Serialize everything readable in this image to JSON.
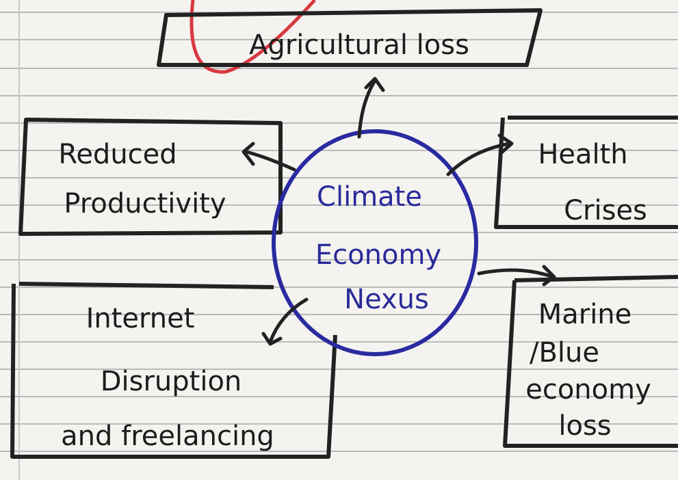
{
  "nodes": [
    {
      "lines": [
        "Agricultural loss"
      ]
    },
    {
      "lines": [
        "Reduced",
        "Productivity"
      ]
    },
    {
      "lines": [
        "Climate",
        "Economy",
        "Nexus"
      ]
    },
    {
      "lines": [
        "Health",
        "Crises"
      ]
    },
    {
      "lines": [
        "Internet",
        "Disruption",
        "and freelancing"
      ]
    },
    {
      "lines": [
        "Marine",
        "/Blue",
        "economy",
        "loss"
      ]
    }
  ]
}
